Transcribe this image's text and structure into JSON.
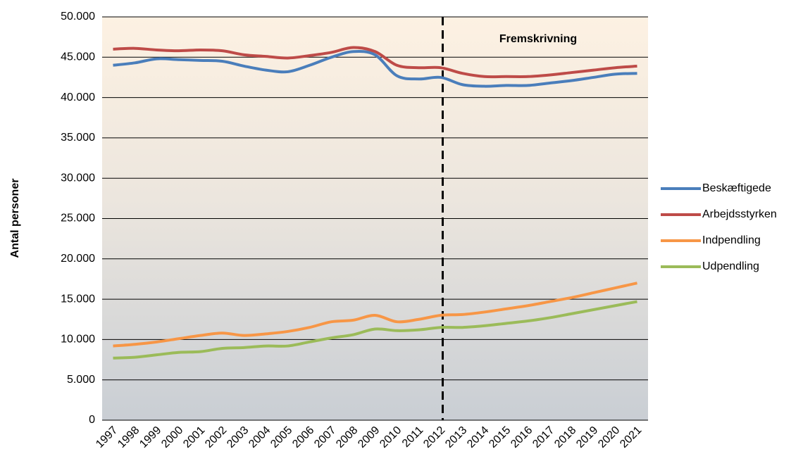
{
  "chart_data": {
    "type": "line",
    "y_label": "Antal personer",
    "annotation": "Fremskrivning",
    "vline": "2012",
    "categories": [
      "1997",
      "1998",
      "1999",
      "2000",
      "2001",
      "2002",
      "2003",
      "2004",
      "2005",
      "2006",
      "2007",
      "2008",
      "2009",
      "2010",
      "2011",
      "2012",
      "2013",
      "2014",
      "2015",
      "2016",
      "2017",
      "2018",
      "2019",
      "2020",
      "2021"
    ],
    "series": [
      {
        "name": "Beskæftigede",
        "color": "#4a7ebb",
        "values": [
          44000,
          44300,
          44800,
          44700,
          44600,
          44500,
          43900,
          43400,
          43200,
          44000,
          45000,
          45700,
          45300,
          42700,
          42300,
          42500,
          41600,
          41400,
          41500,
          41500,
          41800,
          42100,
          42500,
          42900,
          43000
        ]
      },
      {
        "name": "Arbejdsstyrken",
        "color": "#be4b48",
        "values": [
          46000,
          46100,
          45900,
          45800,
          45900,
          45800,
          45300,
          45100,
          44900,
          45200,
          45600,
          46200,
          45700,
          44000,
          43700,
          43700,
          43000,
          42600,
          42600,
          42600,
          42800,
          43100,
          43400,
          43700,
          43900
        ]
      },
      {
        "name": "Indpendling",
        "color": "#f79646",
        "values": [
          9200,
          9400,
          9700,
          10100,
          10500,
          10800,
          10500,
          10700,
          11000,
          11500,
          12200,
          12400,
          13000,
          12200,
          12500,
          13000,
          13100,
          13400,
          13800,
          14200,
          14700,
          15200,
          15800,
          16400,
          17000
        ]
      },
      {
        "name": "Udpendling",
        "color": "#9bbb59",
        "values": [
          7700,
          7800,
          8100,
          8400,
          8500,
          8900,
          9000,
          9200,
          9200,
          9700,
          10200,
          10600,
          11300,
          11100,
          11200,
          11500,
          11500,
          11700,
          12000,
          12300,
          12700,
          13200,
          13700,
          14200,
          14700
        ]
      }
    ],
    "ylim": [
      0,
      50000
    ],
    "yticks": [
      0,
      {
        "value": 5000,
        "label": "5.000"
      },
      {
        "value": 10000,
        "label": "10.000"
      },
      {
        "value": 15000,
        "label": "15.000"
      },
      {
        "value": 20000,
        "label": "20.000"
      },
      {
        "value": 25000,
        "label": "25.000"
      },
      {
        "value": 30000,
        "label": "30.000"
      },
      {
        "value": 35000,
        "label": "35.000"
      },
      {
        "value": 40000,
        "label": "40.000"
      },
      {
        "value": 45000,
        "label": "45.000"
      },
      {
        "value": 50000,
        "label": "50.000"
      }
    ],
    "grid": true
  }
}
